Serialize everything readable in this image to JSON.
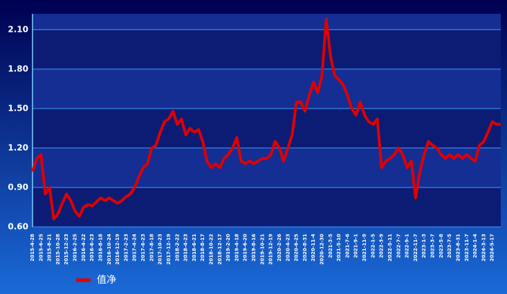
{
  "chart_data": {
    "type": "line",
    "categories": [
      "2015-4-28",
      null,
      "2015-6-25",
      null,
      "2015-8-21",
      null,
      "2015-10-28",
      null,
      "2015-12-23",
      null,
      "2016-2-25",
      null,
      "2016-4-22",
      null,
      "2016-6-23",
      null,
      "2016-8-18",
      null,
      "2016-10-24",
      null,
      "2016-12-19",
      null,
      "2017-2-23",
      null,
      "2017-4-24",
      null,
      "2017-6-23",
      null,
      "2017-8-18",
      null,
      "2017-10-23",
      null,
      "2017-12-19",
      null,
      "2018-2-22",
      null,
      "2018-4-23",
      null,
      "2018-6-21",
      null,
      "2018-8-17",
      null,
      "2018-10-22",
      null,
      "2018-12-17",
      null,
      "2019-2-20",
      null,
      "2019-4-18",
      null,
      "2019-6-20",
      null,
      "2019-8-16",
      null,
      "2019-10-21",
      null,
      "2019-12-19",
      null,
      "2020-2-26",
      null,
      "2020-4-23",
      null,
      "2020-6-25",
      null,
      "2020-8-31",
      null,
      "2020-11-4",
      null,
      "2020-12-30",
      null,
      "2021-3-5",
      null,
      "2021-5-10",
      null,
      "2021-7-6",
      null,
      "2021-9-1",
      null,
      "2021-11-9",
      null,
      "2022-1-5",
      null,
      "2022-3-9",
      null,
      "2022-5-11",
      null,
      "2022-7-7",
      null,
      "2022-9-1",
      null,
      "2022-11-7",
      null,
      "2023-1-3",
      null,
      "2023-3-7",
      null,
      "2023-5-8",
      null,
      "2023-7-5",
      null,
      "2023-8-31",
      null,
      "2023-11-7",
      null,
      "2024-1-4",
      null,
      "2024-3-13",
      null,
      "2024-5-17",
      null,
      null
    ],
    "series": [
      {
        "name": "值净",
        "color": "#e00000",
        "values": [
          1.02,
          1.12,
          1.15,
          0.85,
          0.9,
          0.66,
          0.7,
          0.78,
          0.85,
          0.8,
          0.72,
          0.68,
          0.75,
          0.77,
          0.76,
          0.79,
          0.82,
          0.8,
          0.82,
          0.8,
          0.78,
          0.8,
          0.83,
          0.85,
          0.9,
          0.98,
          1.05,
          1.08,
          1.2,
          1.22,
          1.32,
          1.4,
          1.42,
          1.48,
          1.38,
          1.42,
          1.3,
          1.35,
          1.32,
          1.34,
          1.25,
          1.1,
          1.05,
          1.08,
          1.05,
          1.12,
          1.15,
          1.2,
          1.28,
          1.1,
          1.08,
          1.1,
          1.08,
          1.1,
          1.12,
          1.12,
          1.15,
          1.25,
          1.2,
          1.1,
          1.2,
          1.3,
          1.55,
          1.55,
          1.48,
          1.6,
          1.7,
          1.62,
          1.75,
          2.18,
          1.9,
          1.75,
          1.72,
          1.68,
          1.6,
          1.5,
          1.45,
          1.55,
          1.45,
          1.4,
          1.38,
          1.42,
          1.05,
          1.1,
          1.12,
          1.15,
          1.2,
          1.15,
          1.05,
          1.1,
          0.82,
          1.02,
          1.15,
          1.25,
          1.22,
          1.2,
          1.15,
          1.12,
          1.15,
          1.12,
          1.15,
          1.12,
          1.15,
          1.12,
          1.1,
          1.22,
          1.25,
          1.32,
          1.4,
          1.38,
          1.38
        ]
      }
    ],
    "ylim": [
      0.6,
      2.22
    ],
    "yticks": [
      {
        "value": 0.6,
        "label": "0.60"
      },
      {
        "value": 0.9,
        "label": "0.90"
      },
      {
        "value": 1.2,
        "label": "1.20"
      },
      {
        "value": 1.5,
        "label": "1.50"
      },
      {
        "value": 1.8,
        "label": "1.80"
      },
      {
        "value": 2.1,
        "label": "2.10"
      }
    ],
    "grid": true
  }
}
